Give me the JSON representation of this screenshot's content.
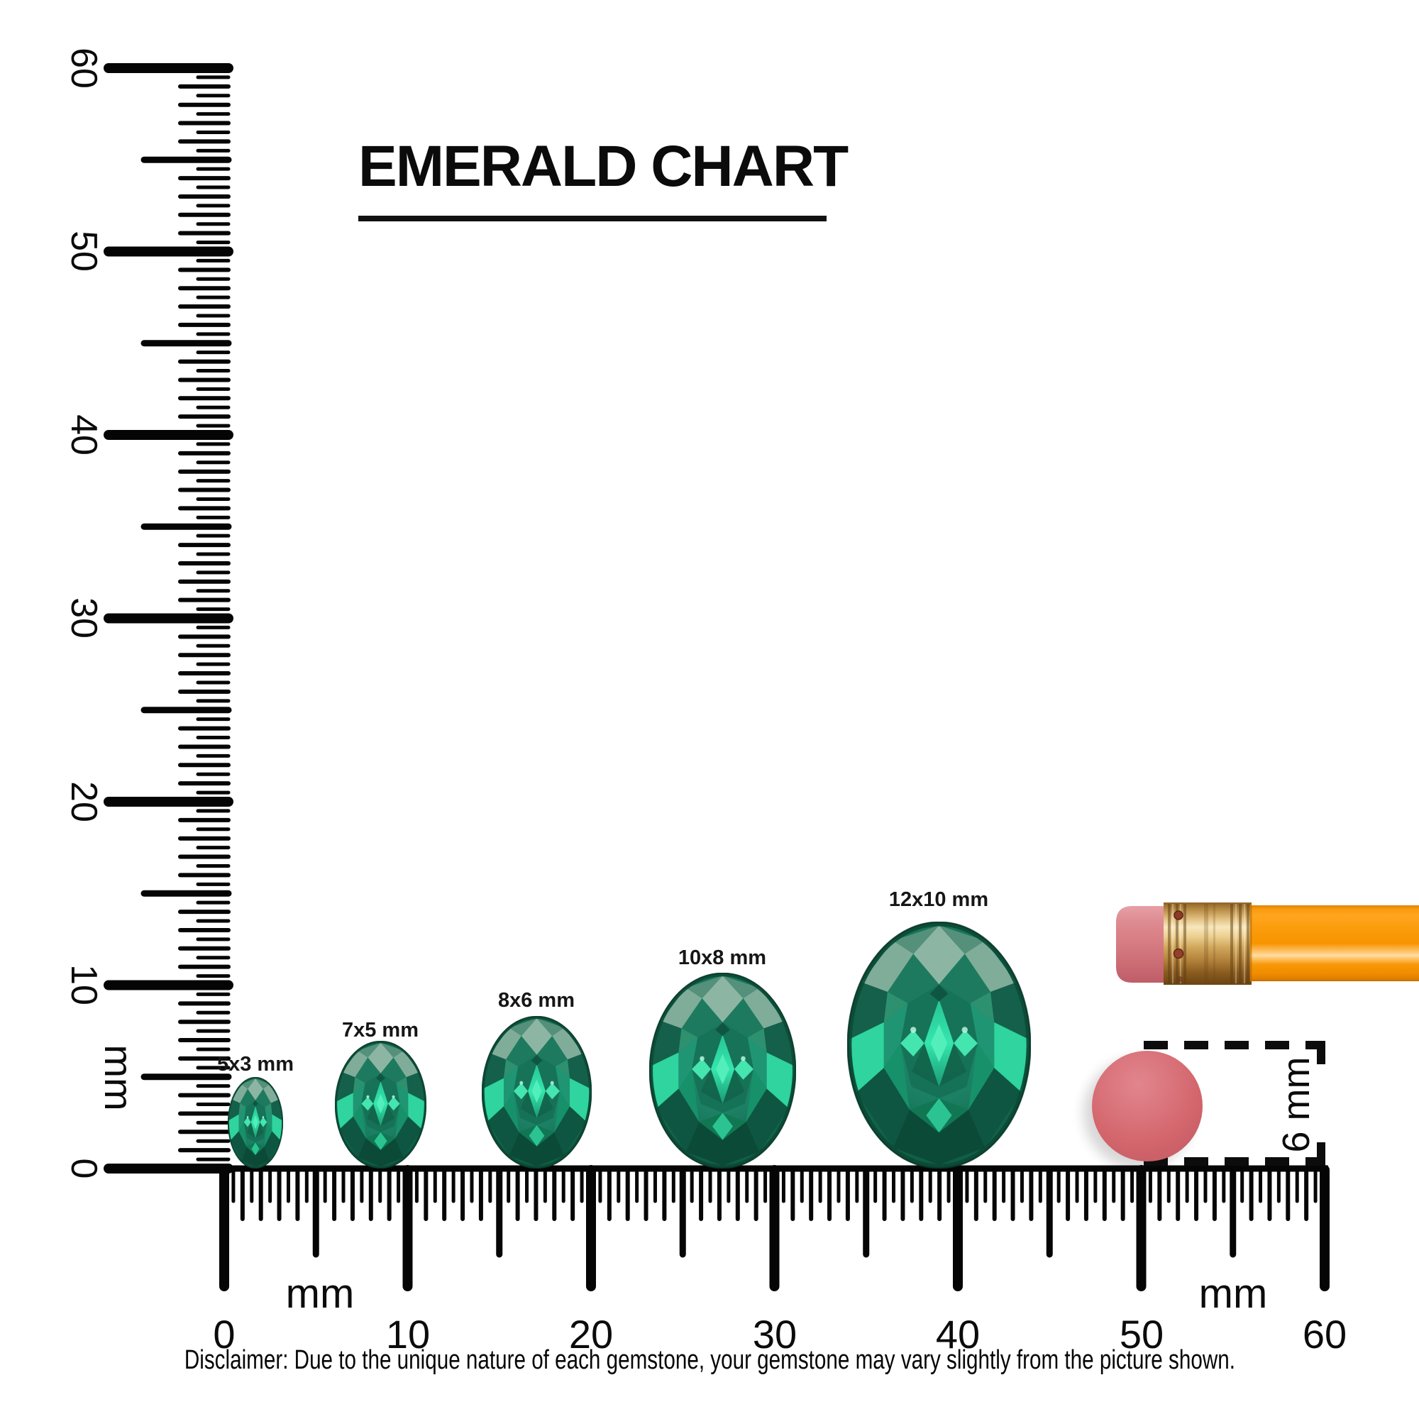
{
  "title": "EMERALD CHART",
  "gems": [
    {
      "label": "5x3 mm",
      "width_mm": 3,
      "height_mm": 5
    },
    {
      "label": "7x5 mm",
      "width_mm": 5,
      "height_mm": 7
    },
    {
      "label": "8x6 mm",
      "width_mm": 6,
      "height_mm": 8
    },
    {
      "label": "10x8 mm",
      "width_mm": 8,
      "height_mm": 10
    },
    {
      "label": "12x10 mm",
      "width_mm": 10,
      "height_mm": 12
    }
  ],
  "rulers": {
    "vertical": {
      "unit": "mm",
      "labels": [
        "0",
        "10",
        "20",
        "30",
        "40",
        "50",
        "60"
      ]
    },
    "horizontal": {
      "unit_left": "mm",
      "unit_right": "mm",
      "labels": [
        "0",
        "10",
        "20",
        "30",
        "40",
        "50",
        "60"
      ]
    }
  },
  "pencil": {
    "eraser_diameter_label": "6 mm"
  },
  "disclaimer": "Disclaimer: Due to the unique nature of each gemstone, your gemstone may vary slightly from the picture shown.",
  "colors": {
    "gem_green": "#177760",
    "gem_mint": "#2ECC9A",
    "pencil_orange": "#FB9A08",
    "ferrule_gold": "#D9A95C",
    "eraser_pink": "#D5666D",
    "ink": "#000000"
  }
}
